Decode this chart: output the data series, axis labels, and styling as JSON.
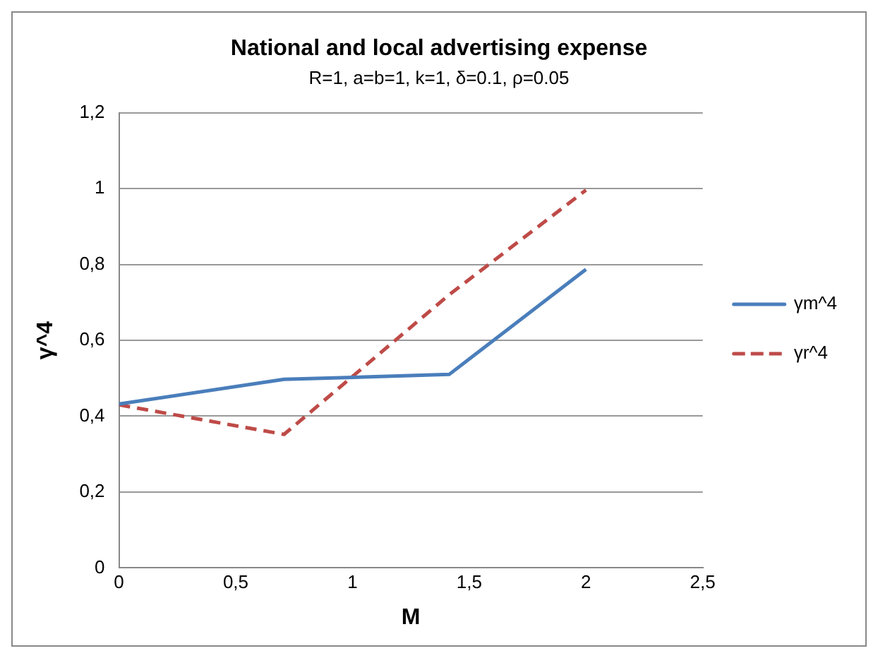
{
  "chart_data": {
    "type": "line",
    "title": "National and local advertising expense",
    "subtitle": "R=1, a=b=1, k=1, δ=0.1, ρ=0.05",
    "xlabel": "M",
    "ylabel": "γ^4",
    "x": [
      0,
      0.707,
      1.414,
      2
    ],
    "series": [
      {
        "name": "γm^4",
        "color": "#4a7ebb",
        "values": [
          0.432,
          0.497,
          0.51,
          0.787
        ],
        "line_style": "solid"
      },
      {
        "name": "γr^4",
        "color": "#be4b48",
        "values": [
          0.43,
          0.352,
          0.72,
          0.996
        ],
        "line_style": "dashed"
      }
    ],
    "xlim": [
      0,
      2.5
    ],
    "xticks": [
      0,
      {
        "value": 0.5,
        "label": "0,5"
      },
      1,
      {
        "value": 1.5,
        "label": "1,5"
      },
      2,
      {
        "value": 2.5,
        "label": "2,5"
      }
    ],
    "ylim": [
      0,
      1.2
    ],
    "yticks": [
      0,
      {
        "value": 0.2,
        "label": "0,2"
      },
      {
        "value": 0.4,
        "label": "0,4"
      },
      {
        "value": 0.6,
        "label": "0,6"
      },
      {
        "value": 0.8,
        "label": "0,8"
      },
      1,
      {
        "value": 1.2,
        "label": "1,2"
      }
    ],
    "grid": "y",
    "legend": "right",
    "marker": "none"
  }
}
